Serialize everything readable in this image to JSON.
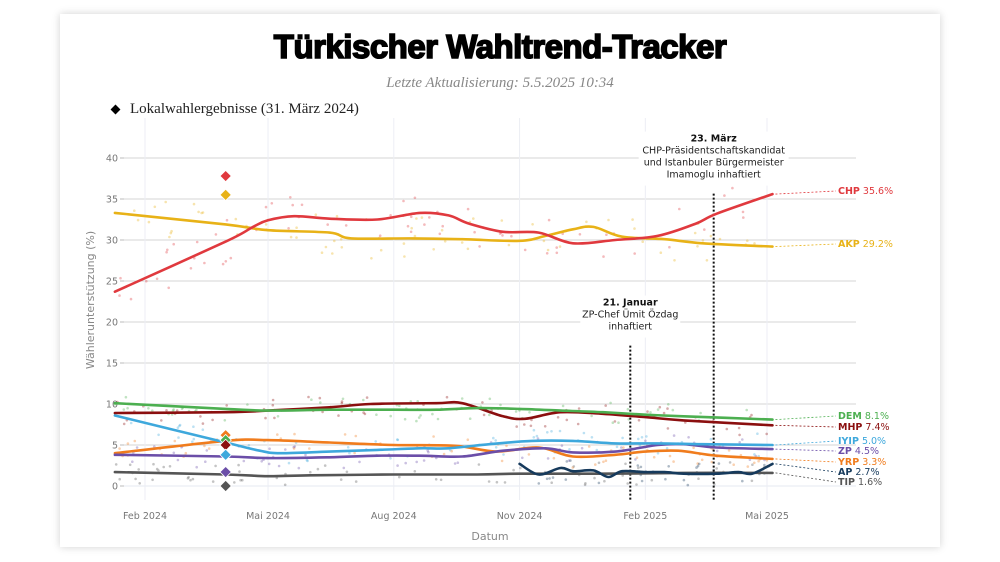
{
  "header": {
    "title": "Türkischer Wahltrend-Tracker",
    "subtitle": "Letzte Aktualisierung: 5.5.2025 10:34"
  },
  "legend": {
    "label": "Lokalwahlergebnisse (31. März 2024)",
    "marker_color": "#000000"
  },
  "chart_data": {
    "type": "line",
    "title": "Türkischer Wahltrend-Tracker",
    "subtitle": "Letzte Aktualisierung: 5.5.2025 10:34",
    "xlabel": "Datum",
    "ylabel": "Wählerunterstützung (%)",
    "xlim": [
      "2024-01-10",
      "2025-07-10"
    ],
    "ylim": [
      -2,
      43
    ],
    "yticks": [
      0,
      5,
      10,
      15,
      20,
      25,
      30,
      35,
      40
    ],
    "xticks": [
      {
        "date": "2024-02-01",
        "label": "Feb 2024"
      },
      {
        "date": "2024-05-01",
        "label": "Mai 2024"
      },
      {
        "date": "2024-08-01",
        "label": "Aug 2024"
      },
      {
        "date": "2024-11-01",
        "label": "Nov 2024"
      },
      {
        "date": "2025-02-01",
        "label": "Feb 2025"
      },
      {
        "date": "2025-05-01",
        "label": "Mai 2025"
      }
    ],
    "grid": true,
    "legend_position": "top-left",
    "series": [
      {
        "name": "CHP",
        "color": "#e0393e",
        "final": "35.6%",
        "points": [
          [
            "2024-01-10",
            23.7
          ],
          [
            "2024-03-31",
            29.8
          ],
          [
            "2024-04-20",
            31.6
          ],
          [
            "2024-05-01",
            32.4
          ],
          [
            "2024-05-20",
            32.9
          ],
          [
            "2024-06-15",
            32.6
          ],
          [
            "2024-07-20",
            32.5
          ],
          [
            "2024-08-20",
            33.3
          ],
          [
            "2024-09-10",
            33.0
          ],
          [
            "2024-09-25",
            32.0
          ],
          [
            "2024-10-20",
            31.0
          ],
          [
            "2024-11-15",
            30.9
          ],
          [
            "2024-12-10",
            29.6
          ],
          [
            "2025-01-10",
            30.0
          ],
          [
            "2025-02-10",
            30.5
          ],
          [
            "2025-03-10",
            32.0
          ],
          [
            "2025-03-25",
            33.2
          ],
          [
            "2025-05-05",
            35.6
          ]
        ]
      },
      {
        "name": "AKP",
        "color": "#e8b217",
        "final": "29.2%",
        "points": [
          [
            "2024-01-10",
            33.3
          ],
          [
            "2024-03-31",
            31.9
          ],
          [
            "2024-05-01",
            31.2
          ],
          [
            "2024-06-15",
            30.9
          ],
          [
            "2024-07-01",
            30.2
          ],
          [
            "2024-08-15",
            30.2
          ],
          [
            "2024-09-20",
            30.1
          ],
          [
            "2024-11-01",
            29.9
          ],
          [
            "2024-11-20",
            30.5
          ],
          [
            "2024-12-10",
            31.3
          ],
          [
            "2024-12-25",
            31.6
          ],
          [
            "2025-01-15",
            30.4
          ],
          [
            "2025-02-15",
            30.1
          ],
          [
            "2025-03-15",
            29.6
          ],
          [
            "2025-05-05",
            29.2
          ]
        ]
      },
      {
        "name": "DEM",
        "color": "#4caf50",
        "final": "8.1%",
        "points": [
          [
            "2024-01-10",
            10.1
          ],
          [
            "2024-03-31",
            9.4
          ],
          [
            "2024-05-01",
            9.2
          ],
          [
            "2024-06-15",
            9.3
          ],
          [
            "2024-08-01",
            9.3
          ],
          [
            "2024-09-01",
            9.3
          ],
          [
            "2024-10-01",
            9.5
          ],
          [
            "2024-11-01",
            9.4
          ],
          [
            "2024-12-01",
            9.2
          ],
          [
            "2025-01-01",
            9.0
          ],
          [
            "2025-02-01",
            8.7
          ],
          [
            "2025-03-01",
            8.5
          ],
          [
            "2025-05-05",
            8.1
          ]
        ]
      },
      {
        "name": "MHP",
        "color": "#8b0f0f",
        "final": "7.4%",
        "points": [
          [
            "2024-01-10",
            8.9
          ],
          [
            "2024-03-31",
            9.0
          ],
          [
            "2024-05-01",
            9.2
          ],
          [
            "2024-06-15",
            9.6
          ],
          [
            "2024-07-15",
            10.0
          ],
          [
            "2024-09-01",
            10.1
          ],
          [
            "2024-09-20",
            10.1
          ],
          [
            "2024-10-20",
            8.5
          ],
          [
            "2024-11-05",
            8.2
          ],
          [
            "2024-12-01",
            9.0
          ],
          [
            "2025-01-01",
            8.8
          ],
          [
            "2025-02-01",
            8.4
          ],
          [
            "2025-03-01",
            8.0
          ],
          [
            "2025-05-05",
            7.4
          ]
        ]
      },
      {
        "name": "IYIP",
        "color": "#3ea8dc",
        "final": "5.0%",
        "points": [
          [
            "2024-01-10",
            8.6
          ],
          [
            "2024-03-31",
            5.3
          ],
          [
            "2024-04-25",
            4.3
          ],
          [
            "2024-05-10",
            4.0
          ],
          [
            "2024-06-15",
            4.2
          ],
          [
            "2024-07-20",
            4.4
          ],
          [
            "2024-08-20",
            4.6
          ],
          [
            "2024-09-10",
            4.6
          ],
          [
            "2024-10-10",
            5.1
          ],
          [
            "2024-11-10",
            5.5
          ],
          [
            "2024-12-10",
            5.5
          ],
          [
            "2025-01-10",
            5.2
          ],
          [
            "2025-02-10",
            5.2
          ],
          [
            "2025-03-15",
            5.1
          ],
          [
            "2025-05-05",
            5.0
          ]
        ]
      },
      {
        "name": "ZP",
        "color": "#6b4ea8",
        "final": "4.5%",
        "points": [
          [
            "2024-01-10",
            3.8
          ],
          [
            "2024-03-31",
            3.6
          ],
          [
            "2024-05-01",
            3.4
          ],
          [
            "2024-06-15",
            3.5
          ],
          [
            "2024-07-20",
            3.7
          ],
          [
            "2024-08-20",
            3.7
          ],
          [
            "2024-09-20",
            3.6
          ],
          [
            "2024-10-20",
            4.3
          ],
          [
            "2024-11-20",
            4.6
          ],
          [
            "2024-12-10",
            4.1
          ],
          [
            "2025-01-10",
            4.2
          ],
          [
            "2025-02-10",
            5.0
          ],
          [
            "2025-03-01",
            5.1
          ],
          [
            "2025-03-25",
            4.7
          ],
          [
            "2025-05-05",
            4.5
          ]
        ]
      },
      {
        "name": "YRP",
        "color": "#f07c1d",
        "final": "3.3%",
        "points": [
          [
            "2024-01-10",
            4.0
          ],
          [
            "2024-03-31",
            5.5
          ],
          [
            "2024-05-01",
            5.6
          ],
          [
            "2024-06-15",
            5.3
          ],
          [
            "2024-08-01",
            5.0
          ],
          [
            "2024-09-15",
            4.9
          ],
          [
            "2024-10-15",
            4.2
          ],
          [
            "2024-11-15",
            4.7
          ],
          [
            "2024-12-10",
            3.6
          ],
          [
            "2025-01-10",
            3.8
          ],
          [
            "2025-02-01",
            4.2
          ],
          [
            "2025-02-25",
            4.3
          ],
          [
            "2025-03-25",
            3.7
          ],
          [
            "2025-05-05",
            3.3
          ]
        ]
      },
      {
        "name": "AP",
        "color": "#163a5c",
        "final": "2.7%",
        "points": [
          [
            "2024-11-01",
            2.7
          ],
          [
            "2024-11-15",
            1.4
          ],
          [
            "2024-12-01",
            2.2
          ],
          [
            "2024-12-10",
            1.8
          ],
          [
            "2024-12-25",
            1.9
          ],
          [
            "2025-01-05",
            1.1
          ],
          [
            "2025-01-15",
            1.8
          ],
          [
            "2025-02-01",
            1.7
          ],
          [
            "2025-02-15",
            1.7
          ],
          [
            "2025-03-01",
            1.5
          ],
          [
            "2025-03-25",
            1.5
          ],
          [
            "2025-04-10",
            1.7
          ],
          [
            "2025-04-20",
            1.5
          ],
          [
            "2025-05-05",
            2.7
          ]
        ]
      },
      {
        "name": "TIP",
        "color": "#555555",
        "final": "1.6%",
        "points": [
          [
            "2024-01-10",
            1.7
          ],
          [
            "2024-03-31",
            1.4
          ],
          [
            "2024-05-01",
            1.2
          ],
          [
            "2024-06-01",
            1.3
          ],
          [
            "2024-08-01",
            1.4
          ],
          [
            "2024-10-01",
            1.4
          ],
          [
            "2024-11-01",
            1.5
          ],
          [
            "2025-01-01",
            1.5
          ],
          [
            "2025-03-01",
            1.6
          ],
          [
            "2025-05-05",
            1.6
          ]
        ]
      }
    ],
    "local_election_results": {
      "date": "2024-03-31",
      "values": [
        {
          "party": "CHP",
          "value": 37.8
        },
        {
          "party": "AKP",
          "value": 35.5
        },
        {
          "party": "YRP",
          "value": 6.2
        },
        {
          "party": "DEM",
          "value": 5.6
        },
        {
          "party": "MHP",
          "value": 5.0
        },
        {
          "party": "IYIP",
          "value": 3.8
        },
        {
          "party": "ZP",
          "value": 1.7
        },
        {
          "party": "TIP",
          "value": 0.0
        }
      ]
    },
    "annotations": [
      {
        "date": "2025-01-21",
        "title": "21. Januar",
        "lines": [
          "ZP-Chef Ümit Özdag",
          "inhaftiert"
        ],
        "label_y": 22
      },
      {
        "date": "2025-03-23",
        "title": "23. März",
        "lines": [
          "CHP-Präsidentschaftskandidat",
          "und Istanbuler Bürgermeister",
          "Imamoglu inhaftiert"
        ],
        "label_y": 42
      }
    ]
  }
}
